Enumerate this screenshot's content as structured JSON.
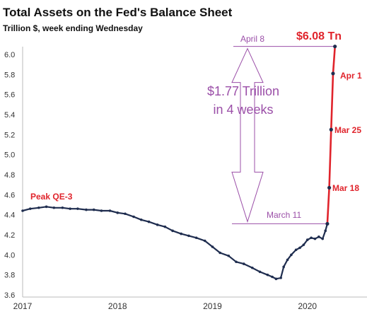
{
  "chart_data": {
    "type": "line",
    "title": "Total Assets on the Fed's Balance Sheet",
    "subtitle": "Trillion $, week ending Wednesday",
    "ylim": [
      3.6,
      6.1
    ],
    "y_ticks": [
      "3.6",
      "3.8",
      "4.0",
      "4.2",
      "4.4",
      "4.6",
      "4.8",
      "5.0",
      "5.2",
      "5.4",
      "5.6",
      "5.8",
      "6.0"
    ],
    "x_ticks": [
      "2017",
      "2018",
      "2019",
      "2020"
    ],
    "grid": false,
    "colors": {
      "line": "#1f2d4f",
      "recent_line": "#e0242c",
      "annotation": "#9b4fa8",
      "highlight": "#e0242c"
    },
    "series": [
      {
        "x": [
          2017.0,
          2017.08,
          2017.17,
          2017.25,
          2017.33,
          2017.42,
          2017.5,
          2017.58,
          2017.67,
          2017.75,
          2017.83,
          2017.92,
          2018.0,
          2018.08,
          2018.17,
          2018.25,
          2018.33,
          2018.42,
          2018.5,
          2018.58,
          2018.67,
          2018.75,
          2018.83,
          2018.92,
          2019.0,
          2019.08,
          2019.17,
          2019.25,
          2019.33,
          2019.42,
          2019.5,
          2019.58,
          2019.63,
          2019.67,
          2019.72,
          2019.75,
          2019.79,
          2019.83,
          2019.88,
          2019.92,
          2019.96,
          2020.0,
          2020.04,
          2020.08,
          2020.12,
          2020.16,
          2020.19,
          2020.21
        ],
        "values": [
          4.44,
          4.46,
          4.47,
          4.48,
          4.47,
          4.47,
          4.46,
          4.46,
          4.45,
          4.45,
          4.44,
          4.44,
          4.42,
          4.41,
          4.38,
          4.35,
          4.33,
          4.3,
          4.28,
          4.24,
          4.21,
          4.19,
          4.17,
          4.14,
          4.08,
          4.02,
          3.99,
          3.93,
          3.91,
          3.87,
          3.83,
          3.8,
          3.78,
          3.76,
          3.77,
          3.88,
          3.95,
          4.0,
          4.05,
          4.07,
          4.1,
          4.15,
          4.17,
          4.16,
          4.18,
          4.16,
          4.24,
          4.31
        ]
      },
      {
        "x": [
          2020.21,
          2020.23,
          2020.25,
          2020.27,
          2020.29
        ],
        "values": [
          4.31,
          4.67,
          5.25,
          5.81,
          6.08
        ]
      }
    ],
    "annotations": {
      "peak_qe3": "Peak QE-3",
      "april8": "April 8",
      "total": "$6.08 Tn",
      "apr1": "Apr 1",
      "mar25": "Mar 25",
      "mar18": "Mar 18",
      "march11": "March 11",
      "growth_line1": "$1.77 Trillion",
      "growth_line2": "in 4 weeks"
    }
  }
}
